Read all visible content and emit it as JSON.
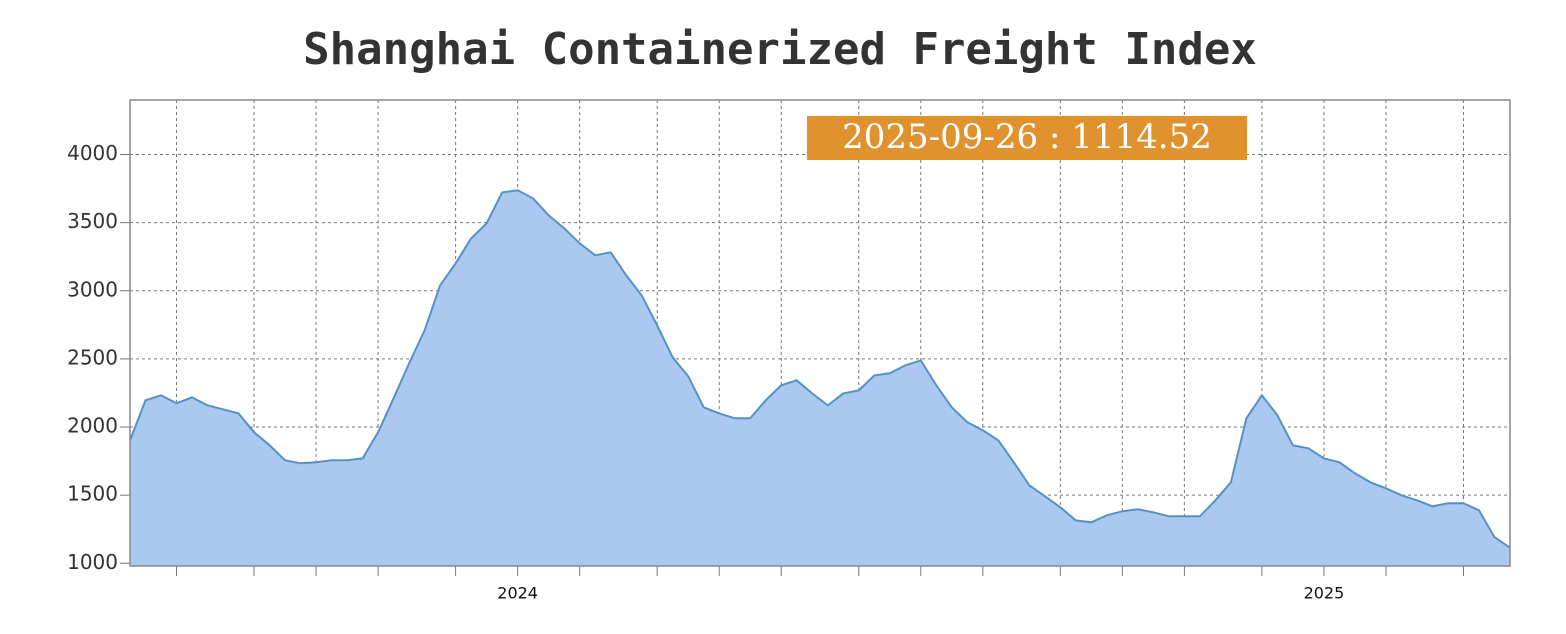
{
  "chart_data": {
    "type": "area",
    "title": "Shanghai Containerized Freight Index",
    "annotation": "2025-09-26 : 1114.52",
    "categories": [
      null,
      null,
      null,
      null,
      null,
      null,
      null,
      null,
      null,
      null,
      null,
      null,
      null,
      null,
      null,
      null,
      null,
      null,
      null,
      null,
      null,
      null,
      null,
      null,
      null,
      "2024",
      null,
      null,
      null,
      null,
      null,
      null,
      null,
      null,
      null,
      null,
      null,
      null,
      null,
      null,
      null,
      null,
      null,
      null,
      null,
      null,
      null,
      null,
      null,
      null,
      null,
      null,
      null,
      null,
      null,
      null,
      null,
      null,
      null,
      null,
      null,
      null,
      null,
      null,
      null,
      null,
      null,
      null,
      null,
      null,
      null,
      null,
      null,
      null,
      null,
      null,
      null,
      "2025",
      null,
      null,
      null,
      null,
      null,
      null,
      null,
      null,
      null,
      null,
      null,
      null
    ],
    "values": [
      1902,
      2196,
      2233,
      2174,
      2218,
      2159,
      2130,
      2100,
      1961,
      1866,
      1756,
      1734,
      1741,
      1756,
      1756,
      1770,
      1961,
      2211,
      2467,
      2709,
      3040,
      3201,
      3384,
      3494,
      3722,
      3737,
      3678,
      3553,
      3458,
      3348,
      3260,
      3282,
      3113,
      2966,
      2746,
      2511,
      2372,
      2145,
      2100,
      2064,
      2064,
      2196,
      2306,
      2343,
      2247,
      2159,
      2247,
      2269,
      2379,
      2394,
      2453,
      2489,
      2306,
      2145,
      2035,
      1976,
      1902,
      1741,
      1572,
      1492,
      1411,
      1315,
      1301,
      1352,
      1382,
      1396,
      1374,
      1345,
      1345,
      1345,
      1462,
      1594,
      2064,
      2233,
      2086,
      1866,
      1844,
      1770,
      1741,
      1660,
      1594,
      1550,
      1499,
      1462,
      1418,
      1440,
      1440,
      1389,
      1191,
      1114.52
    ],
    "color": "#aac8f0",
    "line_color": "#5592c4",
    "annotation_color": "#e0922f",
    "ylim": [
      980,
      4400
    ],
    "yticks": [
      1000,
      1500,
      2000,
      2500,
      3000,
      3500,
      4000
    ],
    "grid": true
  }
}
